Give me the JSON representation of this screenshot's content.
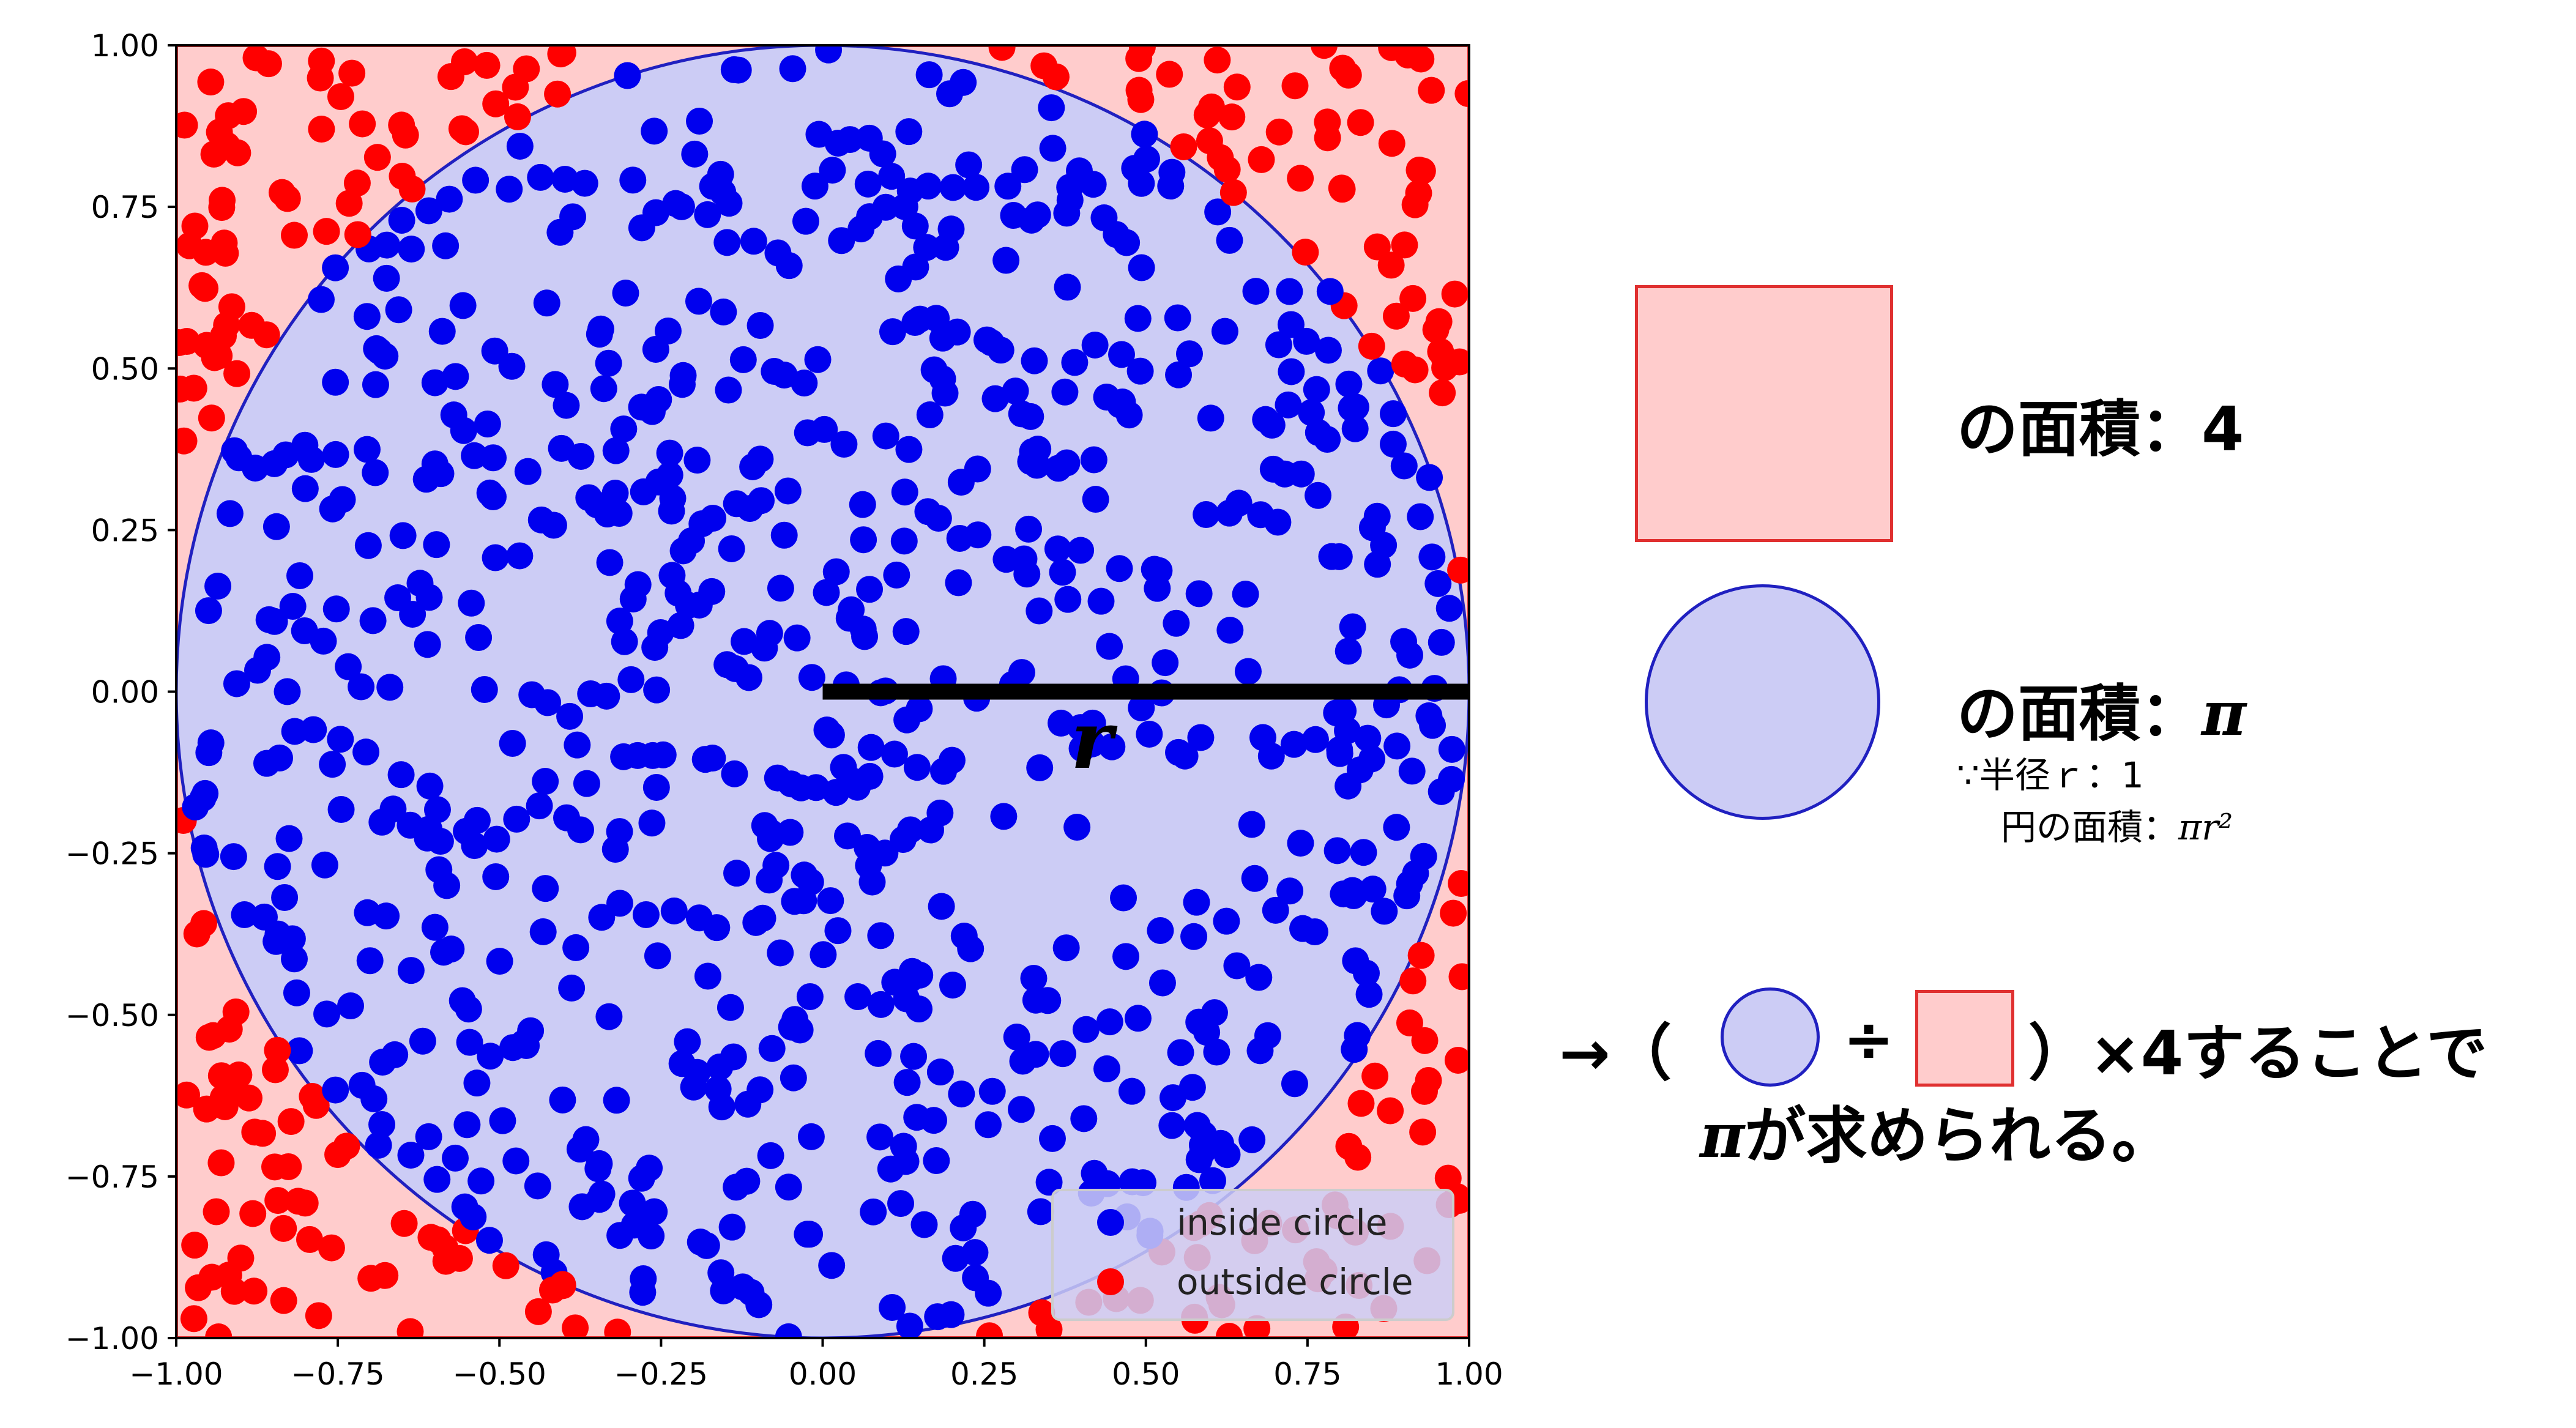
{
  "chart_data": {
    "type": "scatter",
    "xlim": [
      -1.0,
      1.0
    ],
    "ylim": [
      -1.0,
      1.0
    ],
    "x_ticks": [
      "−1.00",
      "−0.75",
      "−0.50",
      "−0.25",
      "0.00",
      "0.25",
      "0.50",
      "0.75",
      "1.00"
    ],
    "y_ticks": [
      "1.00",
      "0.75",
      "0.50",
      "0.25",
      "0.00",
      "−0.25",
      "−0.50",
      "−0.75",
      "−1.00"
    ],
    "x_tick_values": [
      -1.0,
      -0.75,
      -0.5,
      -0.25,
      0.0,
      0.25,
      0.5,
      0.75,
      1.0
    ],
    "y_tick_values": [
      1.0,
      0.75,
      0.5,
      0.25,
      0.0,
      -0.25,
      -0.5,
      -0.75,
      -1.0
    ],
    "grid": false,
    "legend_position": "lower-right",
    "circle": {
      "center": [
        0,
        0
      ],
      "radius": 1,
      "fill": "#ccccf5",
      "edge": "#2020c0"
    },
    "square": {
      "fill": "#ffcccc",
      "edge": "#e03030"
    },
    "radius_line": {
      "from": [
        0,
        0
      ],
      "to": [
        1,
        0
      ],
      "label": "r"
    },
    "series": [
      {
        "name": "inside circle",
        "color": "#0000ee",
        "point_count": 785
      },
      {
        "name": "outside circle",
        "color": "#ff0000",
        "point_count": 215
      }
    ]
  },
  "panel": {
    "square_area_text": "の面積：4",
    "circle_area_text": "の面積：",
    "circle_area_pi": "π",
    "note_line1": "∵半径ｒ：1",
    "note_line2": "円の面積：",
    "note_formula": "πr²",
    "formula_open": "→（",
    "formula_divide": "÷",
    "formula_rest": "）×4することで",
    "conclusion_pi": "π",
    "conclusion_text": "が求められる。"
  }
}
